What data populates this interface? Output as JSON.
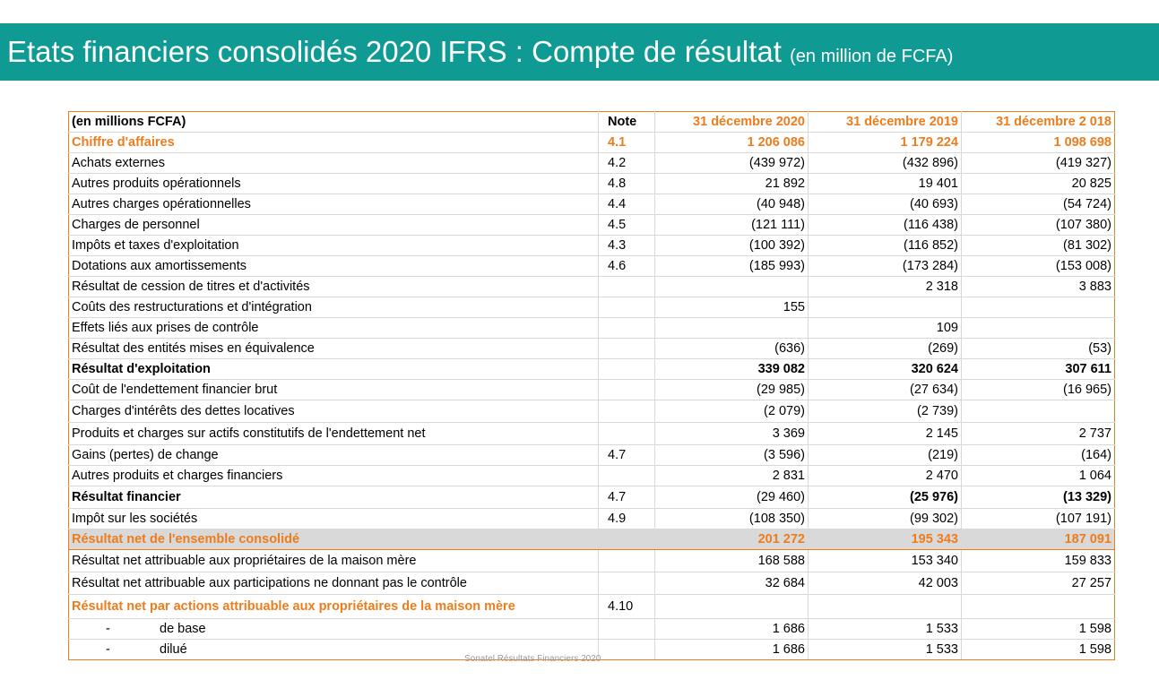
{
  "header": {
    "title_main": "Etats financiers consolidés 2020 IFRS : ",
    "title_light": "Compte de résultat ",
    "title_sub": "(en million de FCFA)"
  },
  "table": {
    "headers": [
      "(en millions FCFA)",
      "Note",
      "31 décembre 2020",
      "31 décembre 2019",
      "31 décembre 2 018"
    ],
    "rows": [
      {
        "label": "Chiffre d'affaires",
        "note": "4.1",
        "v2020": "1 206 086",
        "v2019": "1 179 224",
        "v2018": "1 098 698"
      },
      {
        "label": "Achats externes",
        "note": "4.2",
        "v2020": "(439 972)",
        "v2019": "(432 896)",
        "v2018": "(419 327)"
      },
      {
        "label": "Autres produits opérationnels",
        "note": "4.8",
        "v2020": "21 892",
        "v2019": "19 401",
        "v2018": "20 825"
      },
      {
        "label": "Autres charges opérationnelles",
        "note": "4.4",
        "v2020": "(40 948)",
        "v2019": "(40 693)",
        "v2018": "(54 724)"
      },
      {
        "label": "Charges de personnel",
        "note": "4.5",
        "v2020": "(121 111)",
        "v2019": "(116 438)",
        "v2018": "(107 380)"
      },
      {
        "label": "Impôts et taxes d'exploitation",
        "note": "4.3",
        "v2020": "(100 392)",
        "v2019": "(116 852)",
        "v2018": "(81 302)"
      },
      {
        "label": "Dotations aux amortissements",
        "note": "4.6",
        "v2020": "(185 993)",
        "v2019": "(173 284)",
        "v2018": "(153 008)"
      },
      {
        "label": "Résultat de cession de titres et d'activités",
        "note": "",
        "v2020": "",
        "v2019": "2 318",
        "v2018": "3 883"
      },
      {
        "label": "Coûts des restructurations et d'intégration",
        "note": "",
        "v2020": "155",
        "v2019": "",
        "v2018": ""
      },
      {
        "label": "Effets liés aux prises de contrôle",
        "note": "",
        "v2020": "",
        "v2019": "109",
        "v2018": ""
      },
      {
        "label": "Résultat des entités mises en équivalence",
        "note": "",
        "v2020": "(636)",
        "v2019": "(269)",
        "v2018": "(53)"
      },
      {
        "label": "Résultat d'exploitation",
        "note": "",
        "v2020": "339 082",
        "v2019": "320 624",
        "v2018": "307 611"
      },
      {
        "label": "Coût de l'endettement financier brut",
        "note": "",
        "v2020": "(29 985)",
        "v2019": "(27 634)",
        "v2018": "(16 965)"
      },
      {
        "label": "Charges d'intérêts des dettes locatives",
        "note": "",
        "v2020": "(2 079)",
        "v2019": "(2 739)",
        "v2018": ""
      },
      {
        "label": "Produits et charges sur actifs constitutifs de l'endettement net",
        "note": "",
        "v2020": "3 369",
        "v2019": "2 145",
        "v2018": "2 737"
      },
      {
        "label": "Gains (pertes) de change",
        "note": "4.7",
        "v2020": "(3 596)",
        "v2019": "(219)",
        "v2018": "(164)"
      },
      {
        "label": "Autres produits et charges financiers",
        "note": "",
        "v2020": "2 831",
        "v2019": "2 470",
        "v2018": "1 064"
      },
      {
        "label": "Résultat financier",
        "note": "4.7",
        "v2020": "(29 460)",
        "v2019": "(25 976)",
        "v2018": "(13 329)"
      },
      {
        "label": "Impôt sur les sociétés",
        "note": "4.9",
        "v2020": "(108 350)",
        "v2019": "(99 302)",
        "v2018": "(107 191)"
      },
      {
        "label": "Résultat net de l'ensemble consolidé",
        "note": "",
        "v2020": "201 272",
        "v2019": "195 343",
        "v2018": "187 091"
      },
      {
        "label": "Résultat net attribuable aux propriétaires de la maison mère",
        "note": "",
        "v2020": "168 588",
        "v2019": "153 340",
        "v2018": "159 833"
      },
      {
        "label": "Résultat net attribuable aux participations ne donnant pas le contrôle",
        "note": "",
        "v2020": "32 684",
        "v2019": "42 003",
        "v2018": "27 257"
      },
      {
        "label": "Résultat net par actions attribuable aux propriétaires de la maison mère",
        "note": "4.10",
        "v2020": "",
        "v2019": "",
        "v2018": ""
      },
      {
        "dash": "-",
        "label": "de base",
        "note": "",
        "v2020": "1 686",
        "v2019": "1 533",
        "v2018": "1 598"
      },
      {
        "dash": "-",
        "label": "dilué",
        "note": "",
        "v2020": "1 686",
        "v2019": "1 533",
        "v2018": "1 598"
      }
    ]
  },
  "footer": "Sonatel Résultats Financiers 2020",
  "colors": {
    "accent_orange": "#ed7d1c",
    "banner_teal": "#0f9a94",
    "highlight_gray": "#d9d9d9"
  }
}
